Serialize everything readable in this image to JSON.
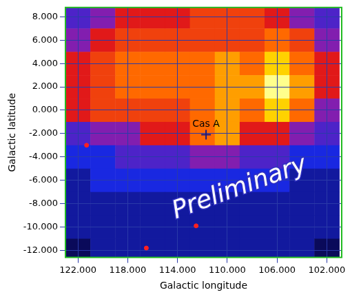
{
  "chart_data": {
    "type": "heatmap",
    "xlabel": "Galactic longitude",
    "ylabel": "Galactic latitude",
    "xlim": [
      123,
      100.8
    ],
    "ylim": [
      -12.6,
      8.8
    ],
    "xticks": [
      {
        "value": 122,
        "label": "122.000"
      },
      {
        "value": 118,
        "label": "118.000"
      },
      {
        "value": 114,
        "label": "114.000"
      },
      {
        "value": 110,
        "label": "110.000"
      },
      {
        "value": 106,
        "label": "106.000"
      },
      {
        "value": 102,
        "label": "102.000"
      }
    ],
    "yticks": [
      {
        "value": 8,
        "label": "8.000"
      },
      {
        "value": 6,
        "label": "6.000"
      },
      {
        "value": 4,
        "label": "4.000"
      },
      {
        "value": 2,
        "label": "2.000"
      },
      {
        "value": 0,
        "label": "0.000"
      },
      {
        "value": -2,
        "label": "-2.000"
      },
      {
        "value": -4,
        "label": "-4.000"
      },
      {
        "value": -6,
        "label": "-6.000"
      },
      {
        "value": -8,
        "label": "-8.000"
      },
      {
        "value": -10,
        "label": "-10.000"
      },
      {
        "value": -12,
        "label": "-12.000"
      }
    ],
    "grid": true,
    "x_centers": [
      122,
      120,
      118,
      116,
      114,
      112,
      110,
      108,
      106,
      104,
      102
    ],
    "y_centers": [
      8,
      6,
      4,
      2,
      0,
      -2,
      -4,
      -6,
      -8,
      -10,
      -12
    ],
    "cells": [
      [
        3,
        4,
        5,
        5,
        5,
        6,
        6,
        6,
        5,
        4,
        3
      ],
      [
        4,
        5,
        6,
        6,
        6,
        6,
        6,
        6,
        7,
        6,
        4
      ],
      [
        5,
        6,
        7,
        7,
        7,
        7,
        8,
        7,
        9,
        7,
        5
      ],
      [
        5,
        6,
        7,
        7,
        7,
        7,
        8,
        8,
        10,
        8,
        5
      ],
      [
        5,
        6,
        6,
        6,
        6,
        7,
        8,
        7,
        9,
        7,
        4
      ],
      [
        3,
        4,
        4,
        5,
        5,
        7,
        8,
        5,
        5,
        4,
        3
      ],
      [
        2,
        2,
        3,
        3,
        3,
        4,
        4,
        3,
        3,
        2,
        2
      ],
      [
        1,
        2,
        2,
        2,
        2,
        2,
        2,
        2,
        2,
        1,
        1
      ],
      [
        1,
        1,
        1,
        1,
        1,
        1,
        1,
        1,
        1,
        1,
        1
      ],
      [
        1,
        1,
        1,
        1,
        1,
        1,
        1,
        1,
        1,
        1,
        1
      ],
      [
        0,
        1,
        1,
        1,
        1,
        1,
        1,
        1,
        1,
        1,
        0
      ]
    ],
    "zlim": [
      0,
      10
    ],
    "sources": {
      "x": [
        121.3,
        116.5,
        112.5
      ],
      "y": [
        -3,
        -11.8,
        -9.9
      ],
      "color": "#ff2020"
    },
    "annotations": [
      {
        "text": "Cas A",
        "x": 111.7,
        "y": -2.1,
        "marker": "cross"
      },
      {
        "text": "Preliminary",
        "x": 109,
        "y": -6.7
      }
    ]
  }
}
